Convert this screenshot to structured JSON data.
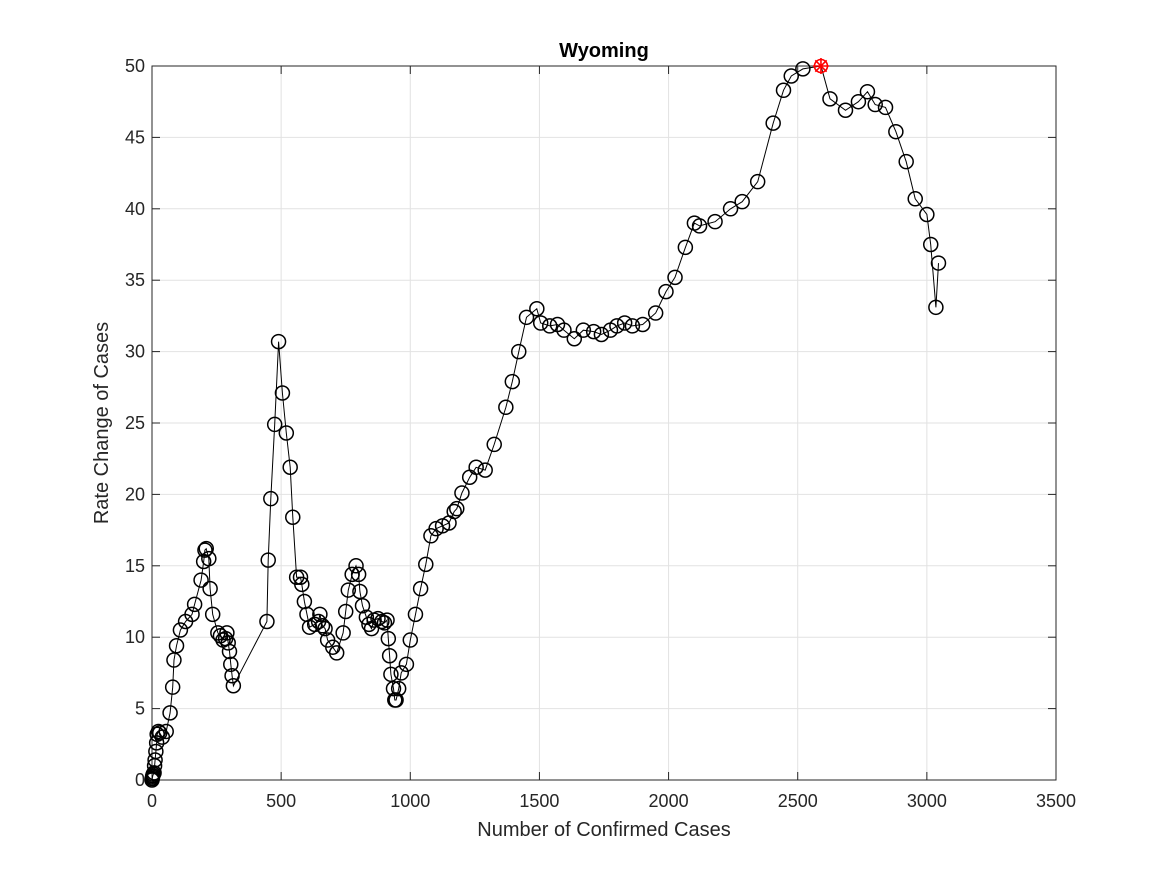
{
  "chart_data": {
    "type": "scatter",
    "title": "Wyoming",
    "xlabel": "Number of Confirmed Cases",
    "ylabel": "Rate Change of Cases",
    "xlim": [
      0,
      3500
    ],
    "ylim": [
      0,
      50
    ],
    "xticks": [
      0,
      500,
      1000,
      1500,
      2000,
      2500,
      3000,
      3500
    ],
    "yticks": [
      0,
      5,
      10,
      15,
      20,
      25,
      30,
      35,
      40,
      45,
      50
    ],
    "grid": true,
    "line_color": "#000000",
    "marker_color": "#000000",
    "highlight_color": "#ff0000",
    "series": [
      {
        "marker": "circle",
        "points": [
          [
            0,
            0
          ],
          [
            1,
            0.1
          ],
          [
            2,
            0.2
          ],
          [
            3,
            0.3
          ],
          [
            5,
            0.4
          ],
          [
            8,
            0.5
          ],
          [
            10,
            1.0
          ],
          [
            12,
            1.4
          ],
          [
            15,
            2.0
          ],
          [
            18,
            2.6
          ],
          [
            20,
            3.2
          ],
          [
            25,
            3.4
          ],
          [
            30,
            3.3
          ],
          [
            40,
            3.0
          ],
          [
            55,
            3.4
          ],
          [
            70,
            4.7
          ],
          [
            80,
            6.5
          ],
          [
            85,
            8.4
          ],
          [
            95,
            9.4
          ],
          [
            110,
            10.5
          ],
          [
            130,
            11.1
          ],
          [
            155,
            11.6
          ],
          [
            165,
            12.3
          ],
          [
            190,
            14.0
          ],
          [
            200,
            15.3
          ],
          [
            205,
            16.1
          ],
          [
            210,
            16.2
          ],
          [
            220,
            15.5
          ],
          [
            225,
            13.4
          ],
          [
            235,
            11.6
          ],
          [
            255,
            10.3
          ],
          [
            265,
            10.1
          ],
          [
            275,
            9.8
          ],
          [
            285,
            9.9
          ],
          [
            290,
            10.3
          ],
          [
            295,
            9.6
          ],
          [
            300,
            9.0
          ],
          [
            305,
            8.1
          ],
          [
            310,
            7.3
          ],
          [
            315,
            6.6
          ],
          [
            445,
            11.1
          ],
          [
            450,
            15.4
          ],
          [
            460,
            19.7
          ],
          [
            475,
            24.9
          ],
          [
            490,
            30.7
          ],
          [
            505,
            27.1
          ],
          [
            520,
            24.3
          ],
          [
            535,
            21.9
          ],
          [
            545,
            18.4
          ],
          [
            560,
            14.2
          ],
          [
            575,
            14.2
          ],
          [
            580,
            13.7
          ],
          [
            590,
            12.5
          ],
          [
            600,
            11.6
          ],
          [
            610,
            10.7
          ],
          [
            630,
            10.9
          ],
          [
            645,
            11.1
          ],
          [
            650,
            11.6
          ],
          [
            660,
            10.8
          ],
          [
            670,
            10.6
          ],
          [
            680,
            9.8
          ],
          [
            700,
            9.3
          ],
          [
            715,
            8.9
          ],
          [
            740,
            10.3
          ],
          [
            750,
            11.8
          ],
          [
            760,
            13.3
          ],
          [
            775,
            14.4
          ],
          [
            790,
            15.0
          ],
          [
            800,
            14.4
          ],
          [
            805,
            13.2
          ],
          [
            815,
            12.2
          ],
          [
            830,
            11.4
          ],
          [
            840,
            10.9
          ],
          [
            850,
            10.6
          ],
          [
            860,
            11.2
          ],
          [
            875,
            11.3
          ],
          [
            890,
            11.1
          ],
          [
            900,
            11.0
          ],
          [
            910,
            11.2
          ],
          [
            915,
            9.9
          ],
          [
            920,
            8.7
          ],
          [
            925,
            7.4
          ],
          [
            935,
            6.4
          ],
          [
            940,
            5.6
          ],
          [
            945,
            5.6
          ],
          [
            955,
            6.4
          ],
          [
            965,
            7.5
          ],
          [
            985,
            8.1
          ],
          [
            1000,
            9.8
          ],
          [
            1020,
            11.6
          ],
          [
            1040,
            13.4
          ],
          [
            1060,
            15.1
          ],
          [
            1080,
            17.1
          ],
          [
            1100,
            17.6
          ],
          [
            1125,
            17.8
          ],
          [
            1150,
            18.0
          ],
          [
            1170,
            18.8
          ],
          [
            1180,
            19.0
          ],
          [
            1200,
            20.1
          ],
          [
            1230,
            21.2
          ],
          [
            1255,
            21.9
          ],
          [
            1290,
            21.7
          ],
          [
            1325,
            23.5
          ],
          [
            1370,
            26.1
          ],
          [
            1395,
            27.9
          ],
          [
            1420,
            30.0
          ],
          [
            1450,
            32.4
          ],
          [
            1490,
            33.0
          ],
          [
            1505,
            32.0
          ],
          [
            1540,
            31.8
          ],
          [
            1570,
            31.9
          ],
          [
            1595,
            31.5
          ],
          [
            1635,
            30.9
          ],
          [
            1670,
            31.5
          ],
          [
            1710,
            31.4
          ],
          [
            1740,
            31.2
          ],
          [
            1775,
            31.5
          ],
          [
            1800,
            31.8
          ],
          [
            1830,
            32.0
          ],
          [
            1860,
            31.8
          ],
          [
            1900,
            31.9
          ],
          [
            1950,
            32.7
          ],
          [
            1990,
            34.2
          ],
          [
            2025,
            35.2
          ],
          [
            2065,
            37.3
          ],
          [
            2100,
            39.0
          ],
          [
            2120,
            38.8
          ],
          [
            2180,
            39.1
          ],
          [
            2240,
            40.0
          ],
          [
            2285,
            40.5
          ],
          [
            2345,
            41.9
          ],
          [
            2405,
            46.0
          ],
          [
            2445,
            48.3
          ],
          [
            2475,
            49.3
          ],
          [
            2520,
            49.8
          ],
          [
            2625,
            47.7
          ],
          [
            2685,
            46.9
          ],
          [
            2735,
            47.5
          ],
          [
            2770,
            48.2
          ],
          [
            2800,
            47.3
          ],
          [
            2840,
            47.1
          ],
          [
            2880,
            45.4
          ],
          [
            2920,
            43.3
          ],
          [
            2955,
            40.7
          ],
          [
            3000,
            39.6
          ],
          [
            3015,
            37.5
          ],
          [
            3035,
            33.1
          ],
          [
            3045,
            36.2
          ]
        ]
      },
      {
        "marker": "star",
        "points": [
          [
            2590,
            50.0
          ]
        ]
      }
    ]
  }
}
